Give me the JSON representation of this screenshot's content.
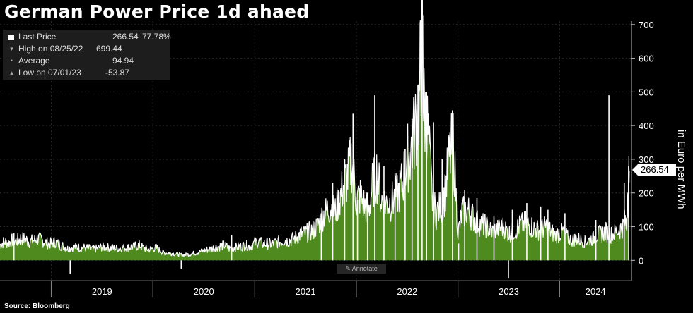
{
  "title": "German Power Price 1d ahaed",
  "source": "Source: Bloomberg",
  "annotate_label": "Annotate",
  "legend": [
    {
      "marker": "white-square",
      "label": "Last Price",
      "value": "266.54",
      "change": "77.78%"
    },
    {
      "marker": "down-triangle",
      "label": "High on 08/25/22",
      "value": "699.44",
      "change": ""
    },
    {
      "marker": "dot",
      "label": "Average",
      "value": "94.94",
      "change": ""
    },
    {
      "marker": "up-triangle",
      "label": "Low on 07/01/23",
      "value": "-53.87",
      "change": ""
    }
  ],
  "chart_data": {
    "type": "area",
    "title": "German Power Price 1d ahaed",
    "ylabel": "in Euro per MWh",
    "ylim": [
      -60,
      710
    ],
    "yticks": [
      0,
      100,
      200,
      300,
      400,
      500,
      600,
      700
    ],
    "xlim": [
      "2018-07-01",
      "2024-09-15"
    ],
    "x_tick_labels": [
      "2019",
      "2020",
      "2021",
      "2022",
      "2023",
      "2024"
    ],
    "year_boundaries": [
      "2019-01-01",
      "2020-01-01",
      "2021-01-01",
      "2022-01-01",
      "2023-01-01",
      "2024-01-01"
    ],
    "last_value_label": "266.54",
    "series": [
      {
        "name": "Last Price",
        "fill_color": "#4e8a1e",
        "line_color": "#ffffff",
        "points": [
          [
            "2018-07-01",
            45
          ],
          [
            "2018-07-15",
            55
          ],
          [
            "2018-08-01",
            52
          ],
          [
            "2018-08-15",
            60
          ],
          [
            "2018-09-01",
            58
          ],
          [
            "2018-09-15",
            65
          ],
          [
            "2018-10-01",
            62
          ],
          [
            "2018-10-15",
            55
          ],
          [
            "2018-11-01",
            60
          ],
          [
            "2018-11-15",
            65
          ],
          [
            "2018-12-01",
            58
          ],
          [
            "2018-12-15",
            52
          ],
          [
            "2019-01-01",
            50
          ],
          [
            "2019-01-15",
            55
          ],
          [
            "2019-02-01",
            45
          ],
          [
            "2019-02-15",
            42
          ],
          [
            "2019-03-01",
            35
          ],
          [
            "2019-03-15",
            38
          ],
          [
            "2019-04-01",
            40
          ],
          [
            "2019-04-15",
            37
          ],
          [
            "2019-05-01",
            38
          ],
          [
            "2019-05-15",
            36
          ],
          [
            "2019-06-01",
            33
          ],
          [
            "2019-06-15",
            35
          ],
          [
            "2019-07-01",
            40
          ],
          [
            "2019-07-15",
            38
          ],
          [
            "2019-08-01",
            37
          ],
          [
            "2019-08-15",
            36
          ],
          [
            "2019-09-01",
            35
          ],
          [
            "2019-09-15",
            38
          ],
          [
            "2019-10-01",
            37
          ],
          [
            "2019-10-15",
            40
          ],
          [
            "2019-11-01",
            42
          ],
          [
            "2019-11-15",
            44
          ],
          [
            "2019-12-01",
            36
          ],
          [
            "2019-12-15",
            32
          ],
          [
            "2020-01-01",
            35
          ],
          [
            "2020-01-15",
            37
          ],
          [
            "2020-02-01",
            25
          ],
          [
            "2020-02-15",
            22
          ],
          [
            "2020-03-01",
            22
          ],
          [
            "2020-03-15",
            20
          ],
          [
            "2020-04-01",
            18
          ],
          [
            "2020-04-15",
            16
          ],
          [
            "2020-05-01",
            17
          ],
          [
            "2020-05-15",
            19
          ],
          [
            "2020-06-01",
            22
          ],
          [
            "2020-06-15",
            25
          ],
          [
            "2020-07-01",
            28
          ],
          [
            "2020-07-15",
            32
          ],
          [
            "2020-08-01",
            35
          ],
          [
            "2020-08-15",
            40
          ],
          [
            "2020-09-01",
            42
          ],
          [
            "2020-09-15",
            45
          ],
          [
            "2020-10-01",
            35
          ],
          [
            "2020-10-15",
            38
          ],
          [
            "2020-11-01",
            40
          ],
          [
            "2020-11-15",
            42
          ],
          [
            "2020-12-01",
            45
          ],
          [
            "2020-12-15",
            40
          ],
          [
            "2021-01-01",
            52
          ],
          [
            "2021-01-15",
            55
          ],
          [
            "2021-02-01",
            48
          ],
          [
            "2021-02-15",
            50
          ],
          [
            "2021-03-01",
            48
          ],
          [
            "2021-03-15",
            52
          ],
          [
            "2021-04-01",
            55
          ],
          [
            "2021-04-15",
            60
          ],
          [
            "2021-05-01",
            58
          ],
          [
            "2021-05-15",
            62
          ],
          [
            "2021-06-01",
            70
          ],
          [
            "2021-06-15",
            78
          ],
          [
            "2021-07-01",
            80
          ],
          [
            "2021-07-15",
            85
          ],
          [
            "2021-08-01",
            90
          ],
          [
            "2021-08-15",
            105
          ],
          [
            "2021-09-01",
            130
          ],
          [
            "2021-09-15",
            145
          ],
          [
            "2021-10-01",
            160
          ],
          [
            "2021-10-15",
            140
          ],
          [
            "2021-11-01",
            180
          ],
          [
            "2021-11-15",
            220
          ],
          [
            "2021-12-01",
            250
          ],
          [
            "2021-12-15",
            300
          ],
          [
            "2022-01-01",
            180
          ],
          [
            "2022-01-15",
            190
          ],
          [
            "2022-02-01",
            160
          ],
          [
            "2022-02-15",
            150
          ],
          [
            "2022-03-01",
            230
          ],
          [
            "2022-03-15",
            260
          ],
          [
            "2022-04-01",
            180
          ],
          [
            "2022-04-15",
            170
          ],
          [
            "2022-05-01",
            170
          ],
          [
            "2022-05-15",
            180
          ],
          [
            "2022-06-01",
            200
          ],
          [
            "2022-06-15",
            230
          ],
          [
            "2022-07-01",
            300
          ],
          [
            "2022-07-15",
            320
          ],
          [
            "2022-08-01",
            400
          ],
          [
            "2022-08-15",
            480
          ],
          [
            "2022-08-25",
            699
          ],
          [
            "2022-09-01",
            450
          ],
          [
            "2022-09-15",
            380
          ],
          [
            "2022-10-01",
            180
          ],
          [
            "2022-10-15",
            140
          ],
          [
            "2022-11-01",
            160
          ],
          [
            "2022-11-15",
            200
          ],
          [
            "2022-12-01",
            300
          ],
          [
            "2022-12-15",
            350
          ],
          [
            "2023-01-01",
            80
          ],
          [
            "2023-01-15",
            140
          ],
          [
            "2023-02-01",
            150
          ],
          [
            "2023-02-15",
            140
          ],
          [
            "2023-03-01",
            120
          ],
          [
            "2023-03-15",
            110
          ],
          [
            "2023-04-01",
            105
          ],
          [
            "2023-04-15",
            100
          ],
          [
            "2023-05-01",
            85
          ],
          [
            "2023-05-15",
            90
          ],
          [
            "2023-06-01",
            95
          ],
          [
            "2023-06-15",
            100
          ],
          [
            "2023-07-01",
            80
          ],
          [
            "2023-07-15",
            85
          ],
          [
            "2023-08-01",
            95
          ],
          [
            "2023-08-15",
            105
          ],
          [
            "2023-09-01",
            110
          ],
          [
            "2023-09-15",
            105
          ],
          [
            "2023-10-01",
            95
          ],
          [
            "2023-10-15",
            90
          ],
          [
            "2023-11-01",
            95
          ],
          [
            "2023-11-15",
            100
          ],
          [
            "2023-12-01",
            85
          ],
          [
            "2023-12-15",
            75
          ],
          [
            "2024-01-01",
            80
          ],
          [
            "2024-01-15",
            85
          ],
          [
            "2024-02-01",
            65
          ],
          [
            "2024-02-15",
            60
          ],
          [
            "2024-03-01",
            65
          ],
          [
            "2024-03-15",
            60
          ],
          [
            "2024-04-01",
            55
          ],
          [
            "2024-04-15",
            60
          ],
          [
            "2024-05-01",
            65
          ],
          [
            "2024-05-15",
            75
          ],
          [
            "2024-06-01",
            80
          ],
          [
            "2024-06-15",
            85
          ],
          [
            "2024-07-01",
            75
          ],
          [
            "2024-07-15",
            80
          ],
          [
            "2024-08-01",
            90
          ],
          [
            "2024-08-15",
            100
          ],
          [
            "2024-08-25",
            120
          ],
          [
            "2024-09-01",
            150
          ],
          [
            "2024-09-07",
            266.54
          ]
        ],
        "spikes": [
          [
            "2018-08-20",
            80
          ],
          [
            "2019-03-10",
            -40
          ],
          [
            "2020-04-12",
            -25
          ],
          [
            "2020-10-10",
            75
          ],
          [
            "2021-08-28",
            140
          ],
          [
            "2021-10-08",
            230
          ],
          [
            "2021-11-20",
            300
          ],
          [
            "2021-12-20",
            435
          ],
          [
            "2022-01-05",
            180
          ],
          [
            "2022-02-10",
            200
          ],
          [
            "2022-03-08",
            490
          ],
          [
            "2022-04-10",
            280
          ],
          [
            "2022-05-20",
            260
          ],
          [
            "2022-06-25",
            330
          ],
          [
            "2022-07-20",
            420
          ],
          [
            "2022-08-10",
            520
          ],
          [
            "2022-08-25",
            699
          ],
          [
            "2022-09-10",
            500
          ],
          [
            "2022-10-05",
            410
          ],
          [
            "2022-11-05",
            300
          ],
          [
            "2022-12-12",
            440
          ],
          [
            "2023-01-03",
            50
          ],
          [
            "2023-01-25",
            210
          ],
          [
            "2023-03-10",
            185
          ],
          [
            "2023-05-10",
            130
          ],
          [
            "2023-07-01",
            -54
          ],
          [
            "2023-07-15",
            150
          ],
          [
            "2023-09-05",
            170
          ],
          [
            "2023-10-25",
            160
          ],
          [
            "2023-11-20",
            150
          ],
          [
            "2024-01-20",
            140
          ],
          [
            "2024-05-10",
            120
          ],
          [
            "2024-06-26",
            490
          ],
          [
            "2024-08-20",
            230
          ],
          [
            "2024-09-05",
            190
          ]
        ]
      }
    ]
  }
}
